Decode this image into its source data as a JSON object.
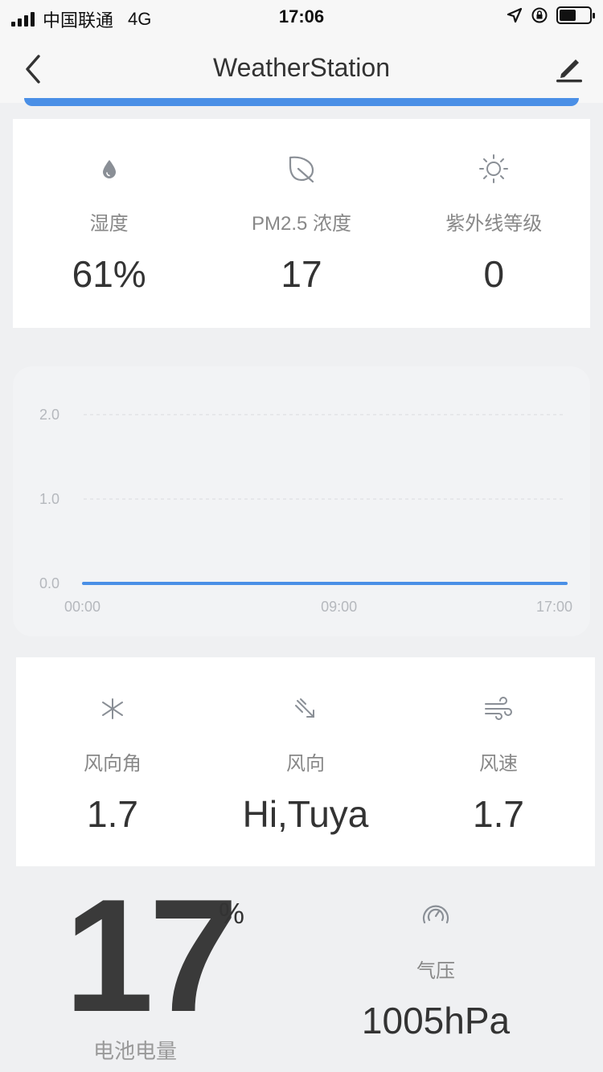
{
  "status_bar": {
    "carrier": "中国联通",
    "network": "4G",
    "time": "17:06"
  },
  "nav": {
    "title": "WeatherStation"
  },
  "metrics_top": [
    {
      "icon": "water-drop-icon",
      "label": "湿度",
      "value": "61%"
    },
    {
      "icon": "leaf-icon",
      "label": "PM2.5 浓度",
      "value": "17"
    },
    {
      "icon": "sun-icon",
      "label": "紫外线等级",
      "value": "0"
    }
  ],
  "chart_data": {
    "type": "line",
    "x_ticks": [
      "00:00",
      "09:00",
      "17:00"
    ],
    "y_ticks": [
      "0.0",
      "1.0",
      "2.0"
    ],
    "ylim": [
      0,
      2
    ],
    "series": [
      {
        "x": [
          "00:00",
          "17:00"
        ],
        "values": [
          0,
          0
        ],
        "color": "#4a8fe6"
      }
    ],
    "grid": true
  },
  "metrics_wind": [
    {
      "icon": "compass-angle-icon",
      "label": "风向角",
      "value": "1.7"
    },
    {
      "icon": "wind-direction-icon",
      "label": "风向",
      "value": "Hi,Tuya"
    },
    {
      "icon": "wind-speed-icon",
      "label": "风速",
      "value": "1.7"
    }
  ],
  "battery": {
    "value": "17",
    "unit": "%",
    "label": "电池电量"
  },
  "pressure": {
    "icon": "gauge-icon",
    "label": "气压",
    "value": "1005hPa"
  },
  "colors": {
    "accent": "#4a8fe6",
    "background": "#eff0f2"
  }
}
